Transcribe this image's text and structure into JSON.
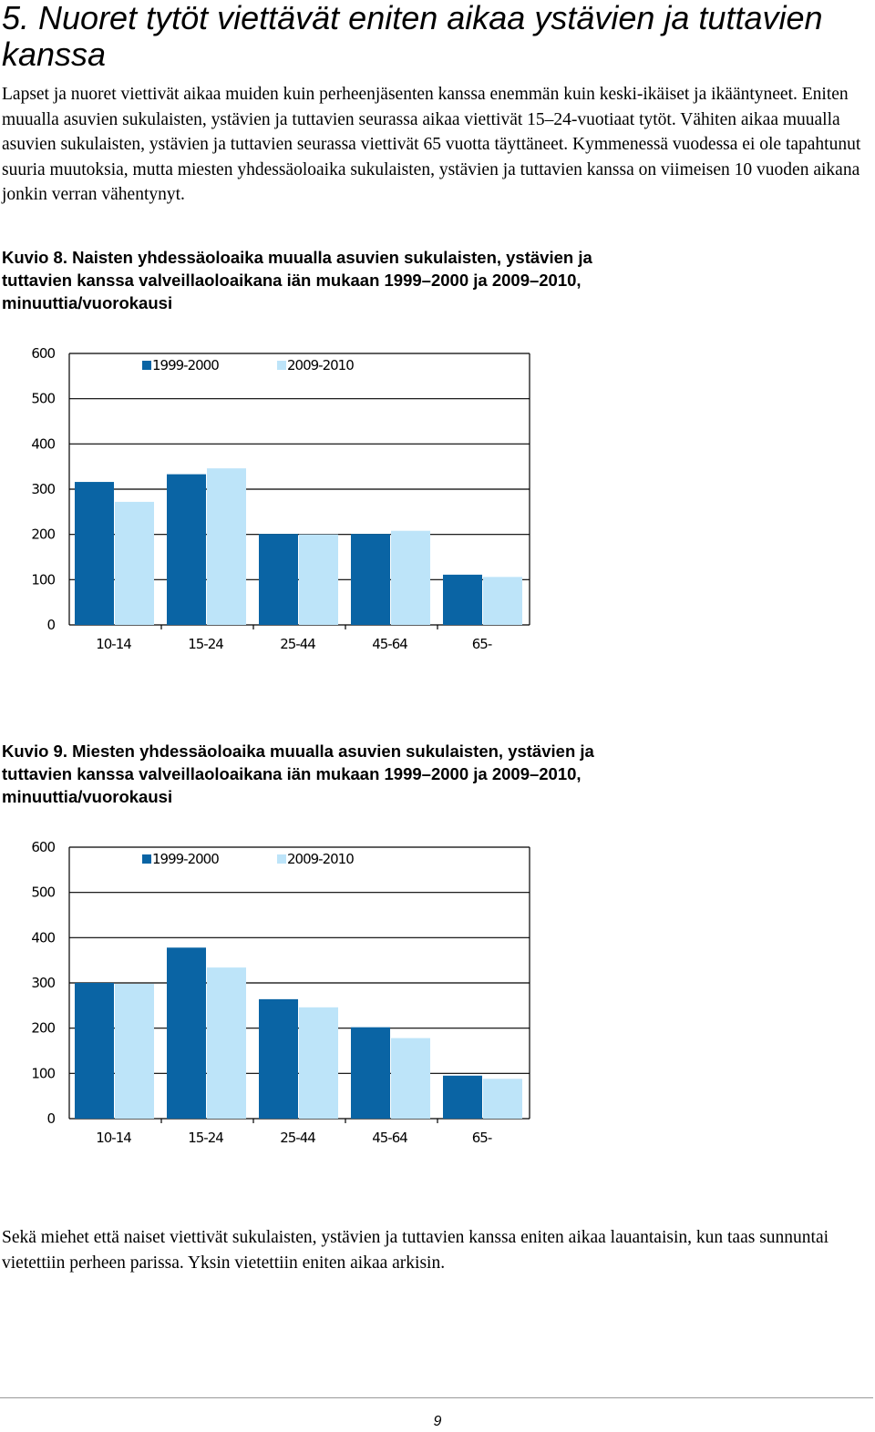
{
  "heading": "5. Nuoret tytöt viettävät eniten aikaa ystävien ja tuttavien kanssa",
  "intro_paragraph": "Lapset ja nuoret viettivät aikaa muiden kuin perheenjäsenten kanssa enemmän kuin keski-ikäiset ja ikääntyneet. Eniten muualla asuvien sukulaisten, ystävien ja tuttavien seurassa aikaa viettivät 15–24-vuotiaat tytöt. Vähiten aikaa muualla asuvien sukulaisten, ystävien ja tuttavien seurassa viettivät 65 vuotta täyttäneet. Kymmenessä vuodessa ei ole tapahtunut suuria muutoksia, mutta miesten yhdessäoloaika sukulaisten, ystävien ja tuttavien kanssa on viimeisen 10 vuoden aikana jonkin verran vähentynyt.",
  "closing_paragraph": "Sekä miehet että naiset viettivät sukulaisten, ystävien ja tuttavien kanssa eniten aikaa lauantaisin, kun taas sunnuntai vietettiin perheen parissa. Yksin vietettiin eniten aikaa arkisin.",
  "page_number": "9",
  "colors": {
    "series_1999": "#0a64a4",
    "series_2009": "#bde4f9",
    "grid": "#000000"
  },
  "chart_data": [
    {
      "type": "bar",
      "caption": "Kuvio 8. Naisten yhdessäoloaika muualla asuvien sukulaisten, ystävien ja tuttavien kanssa valveillaoloaikana iän mukaan 1999–2000 ja 2009–2010, minuuttia/vuorokausi",
      "categories": [
        "10-14",
        "15-24",
        "25-44",
        "45-64",
        "65-"
      ],
      "series": [
        {
          "name": "1999-2000",
          "values": [
            316,
            333,
            201,
            201,
            111
          ]
        },
        {
          "name": "2009-2010",
          "values": [
            272,
            346,
            200,
            208,
            106
          ]
        }
      ],
      "ylim": [
        0,
        600
      ],
      "yticks": [
        0,
        100,
        200,
        300,
        400,
        500,
        600
      ],
      "grid": true,
      "legend_position": "top-left"
    },
    {
      "type": "bar",
      "caption": "Kuvio 9. Miesten yhdessäoloaika muualla asuvien sukulaisten, ystävien ja tuttavien kanssa valveillaoloaikana iän mukaan 1999–2000 ja 2009–2010, minuuttia/vuorokausi",
      "categories": [
        "10-14",
        "15-24",
        "25-44",
        "45-64",
        "65-"
      ],
      "series": [
        {
          "name": "1999-2000",
          "values": [
            300,
            378,
            264,
            202,
            95
          ]
        },
        {
          "name": "2009-2010",
          "values": [
            298,
            334,
            246,
            178,
            88
          ]
        }
      ],
      "ylim": [
        0,
        600
      ],
      "yticks": [
        0,
        100,
        200,
        300,
        400,
        500,
        600
      ],
      "grid": true,
      "legend_position": "top-left"
    }
  ]
}
